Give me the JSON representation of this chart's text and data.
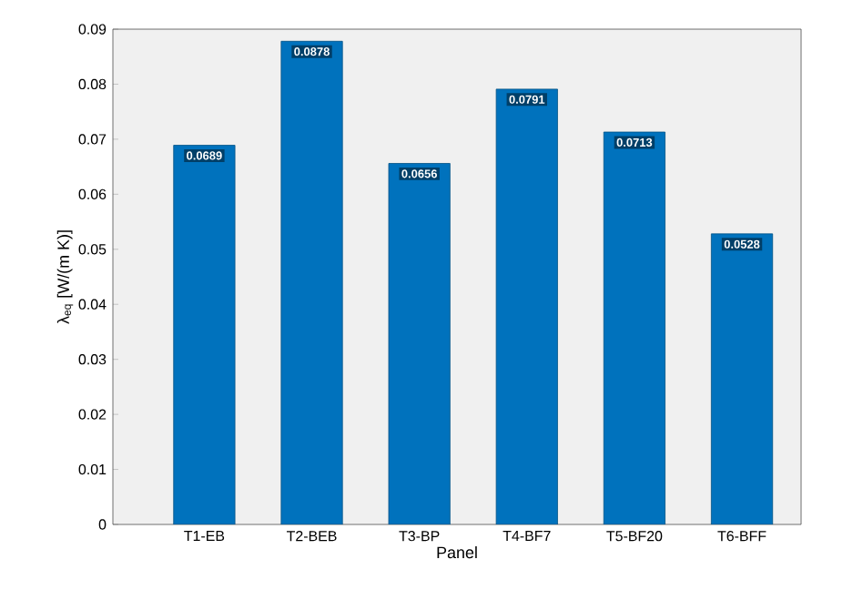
{
  "chart_data": {
    "type": "bar",
    "xlabel": "Panel",
    "ylabel": "λ$_{eq}$ [W/(m K)]",
    "categories": [
      "T1-EB",
      "T2-BEB",
      "T3-BP",
      "T4-BF7",
      "T5-BF20",
      "T6-BFF"
    ],
    "values": [
      0.0689,
      0.0878,
      0.0656,
      0.0791,
      0.0713,
      0.0528
    ],
    "color": "#0072bd",
    "ylim": [
      0,
      0.09
    ],
    "yticks": [
      0,
      0.01,
      0.02,
      0.03,
      0.04,
      0.05,
      0.06,
      0.07,
      0.08,
      0.09
    ],
    "data_labels": true
  }
}
